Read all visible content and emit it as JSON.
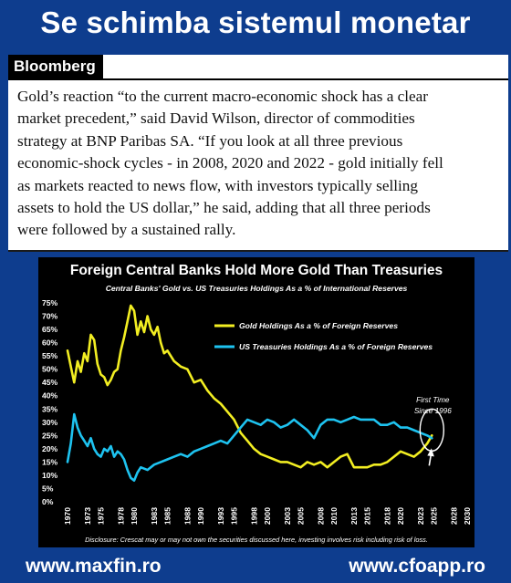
{
  "headline": "Se schimba sistemul monetar",
  "article": {
    "source": "Bloomberg",
    "lines": [
      "Gold’s reaction “to the current macro-economic shock has a clear",
      "market precedent,” said David Wilson, director of commodities",
      "strategy at BNP Paribas SA. “If you look at all three previous",
      "economic-shock cycles - in 2008, 2020 and 2022 - gold initially fell",
      "as markets reacted to news flow, with investors typically selling",
      "assets to hold the US dollar,” he said, adding that all three periods",
      "were followed by a sustained rally."
    ]
  },
  "chart_data": {
    "type": "line",
    "title": "Foreign Central Banks Hold More Gold Than Treasuries",
    "subtitle": "Central Banks' Gold vs. US Treasuries Holdings As a % of International Reserves",
    "xlim": [
      1970,
      2030
    ],
    "ylim": [
      0,
      75
    ],
    "y_ticks": [
      "0%",
      "5%",
      "10%",
      "15%",
      "20%",
      "25%",
      "30%",
      "35%",
      "40%",
      "45%",
      "50%",
      "55%",
      "60%",
      "65%",
      "70%",
      "75%"
    ],
    "x_ticks": [
      "1970",
      "1973",
      "1975",
      "1978",
      "1980",
      "1983",
      "1985",
      "1988",
      "1990",
      "1993",
      "1995",
      "1998",
      "2000",
      "2003",
      "2005",
      "2008",
      "2010",
      "2013",
      "2015",
      "2018",
      "2020",
      "2023",
      "2025",
      "2028",
      "2030"
    ],
    "series": [
      {
        "name": "Gold Holdings As a % of Foreign Reserves",
        "color": "#f2ee22",
        "x": [
          1970,
          1970.5,
          1971,
          1971.5,
          1972,
          1972.5,
          1973,
          1973.5,
          1974,
          1974.5,
          1975,
          1975.5,
          1976,
          1976.5,
          1977,
          1977.5,
          1978,
          1978.5,
          1979,
          1979.5,
          1980,
          1980.5,
          1981,
          1981.5,
          1982,
          1982.5,
          1983,
          1983.5,
          1984,
          1984.5,
          1985,
          1986,
          1987,
          1988,
          1989,
          1990,
          1991,
          1992,
          1993,
          1994,
          1995,
          1996,
          1997,
          1998,
          1999,
          2000,
          2001,
          2002,
          2003,
          2004,
          2005,
          2006,
          2007,
          2008,
          2009,
          2010,
          2011,
          2012,
          2013,
          2014,
          2015,
          2016,
          2017,
          2018,
          2019,
          2020,
          2021,
          2022,
          2023,
          2024,
          2024.7
        ],
        "values": [
          57,
          51,
          45,
          53,
          49,
          56,
          53,
          63,
          61,
          52,
          48,
          47,
          44,
          46,
          49,
          50,
          57,
          62,
          68,
          74,
          72,
          63,
          68,
          64,
          70,
          65,
          63,
          66,
          60,
          56,
          57,
          53,
          51,
          50,
          45,
          46,
          42,
          39,
          37,
          34,
          31,
          26,
          23,
          20,
          18,
          17,
          16,
          15,
          15,
          14,
          13,
          15,
          14,
          15,
          13,
          15,
          17,
          18,
          13,
          13,
          13,
          14,
          14,
          15,
          17,
          19,
          18,
          17,
          19,
          22,
          25
        ]
      },
      {
        "name": "US Treasuries Holdings As a % of Foreign Reserves",
        "color": "#1ec3f0",
        "x": [
          1970,
          1970.5,
          1971,
          1971.5,
          1972,
          1972.5,
          1973,
          1973.5,
          1974,
          1974.5,
          1975,
          1975.5,
          1976,
          1976.5,
          1977,
          1977.5,
          1978,
          1978.5,
          1979,
          1979.5,
          1980,
          1980.5,
          1981,
          1982,
          1983,
          1984,
          1985,
          1986,
          1987,
          1988,
          1989,
          1990,
          1991,
          1992,
          1993,
          1994,
          1995,
          1996,
          1997,
          1998,
          1999,
          2000,
          2001,
          2002,
          2003,
          2004,
          2005,
          2006,
          2007,
          2008,
          2009,
          2010,
          2011,
          2012,
          2013,
          2014,
          2015,
          2016,
          2017,
          2018,
          2019,
          2020,
          2021,
          2022,
          2023,
          2024,
          2024.7
        ],
        "values": [
          15,
          22,
          33,
          28,
          25,
          23,
          21,
          24,
          20,
          18,
          17,
          20,
          19,
          21,
          17,
          19,
          18,
          16,
          12,
          9,
          8,
          11,
          13,
          12,
          14,
          15,
          16,
          17,
          18,
          17,
          19,
          20,
          21,
          22,
          23,
          22,
          25,
          28,
          31,
          30,
          29,
          31,
          30,
          28,
          29,
          31,
          29,
          27,
          24,
          29,
          31,
          31,
          30,
          31,
          32,
          31,
          31,
          31,
          29,
          29,
          30,
          28,
          28,
          27,
          26,
          25,
          24
        ]
      }
    ],
    "annotation": {
      "line1": "First Time",
      "line2": "Since 1996",
      "year": 2024.7,
      "value": 25
    },
    "disclaimer": "Disclosure: Crescat may or may not own the securities discussed here, investing involves risk including risk of loss.",
    "grid": false,
    "legend": "top-right",
    "background": "#000000",
    "title_color": "#ffffff",
    "subtitle_color": "#ffffff"
  },
  "footer": {
    "left": "www.maxfin.ro",
    "right": "www.cfoapp.ro"
  },
  "colors": {
    "page_background": "#0e3d8e",
    "card_background": "#ffffff"
  }
}
